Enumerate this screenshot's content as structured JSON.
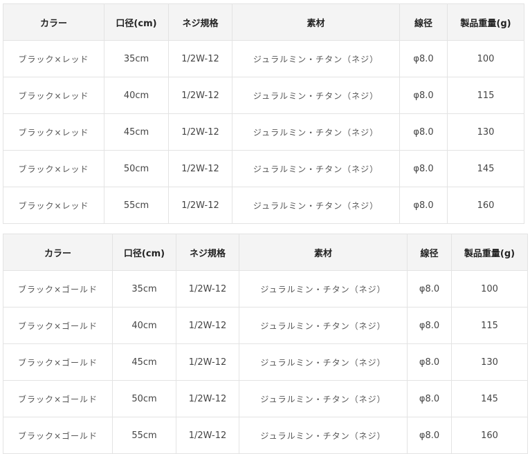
{
  "headers": [
    "カラー",
    "口径(cm)",
    "ネジ規格",
    "素材",
    "線径",
    "製品重量(g)"
  ],
  "tables": [
    {
      "rows": [
        [
          "ブラック×レッド",
          "35cm",
          "1/2W-12",
          "ジュラルミン・チタン（ネジ）",
          "φ8.0",
          "100"
        ],
        [
          "ブラック×レッド",
          "40cm",
          "1/2W-12",
          "ジュラルミン・チタン（ネジ）",
          "φ8.0",
          "115"
        ],
        [
          "ブラック×レッド",
          "45cm",
          "1/2W-12",
          "ジュラルミン・チタン（ネジ）",
          "φ8.0",
          "130"
        ],
        [
          "ブラック×レッド",
          "50cm",
          "1/2W-12",
          "ジュラルミン・チタン（ネジ）",
          "φ8.0",
          "145"
        ],
        [
          "ブラック×レッド",
          "55cm",
          "1/2W-12",
          "ジュラルミン・チタン（ネジ）",
          "φ8.0",
          "160"
        ]
      ]
    },
    {
      "rows": [
        [
          "ブラック×ゴールド",
          "35cm",
          "1/2W-12",
          "ジュラルミン・チタン（ネジ）",
          "φ8.0",
          "100"
        ],
        [
          "ブラック×ゴールド",
          "40cm",
          "1/2W-12",
          "ジュラルミン・チタン（ネジ）",
          "φ8.0",
          "115"
        ],
        [
          "ブラック×ゴールド",
          "45cm",
          "1/2W-12",
          "ジュラルミン・チタン（ネジ）",
          "φ8.0",
          "130"
        ],
        [
          "ブラック×ゴールド",
          "50cm",
          "1/2W-12",
          "ジュラルミン・チタン（ネジ）",
          "φ8.0",
          "145"
        ],
        [
          "ブラック×ゴールド",
          "55cm",
          "1/2W-12",
          "ジュラルミン・チタン（ネジ）",
          "φ8.0",
          "160"
        ]
      ]
    }
  ]
}
